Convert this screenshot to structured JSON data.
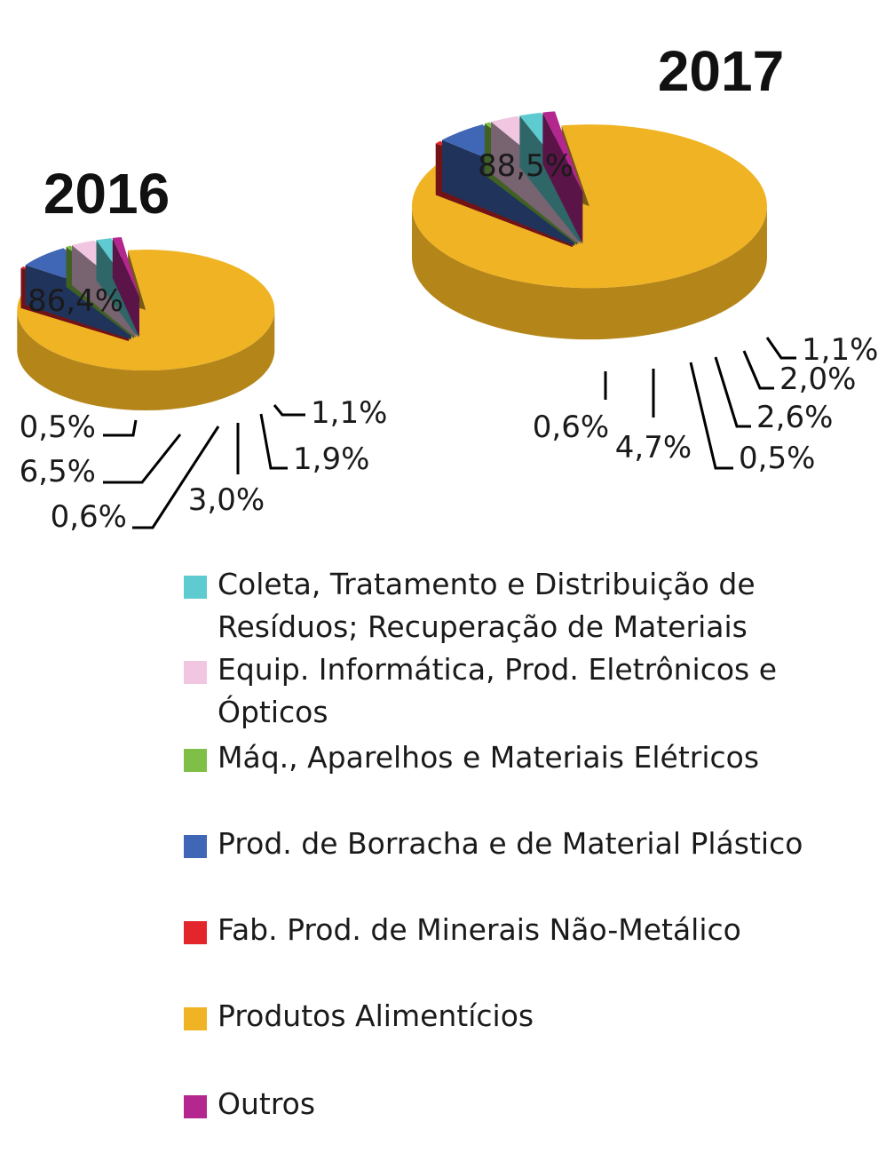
{
  "chart_data": [
    {
      "type": "pie",
      "title": "2016",
      "slices": [
        {
          "name": "Produtos Alimentícios",
          "value": 86.4,
          "label": "86,4%",
          "color": "#f0b323"
        },
        {
          "name": "Fab. Prod. de Minerais Não-Metálico",
          "value": 0.5,
          "label": "0,5%",
          "color": "#e3262b"
        },
        {
          "name": "Prod. de Borracha e de Material Plástico",
          "value": 6.5,
          "label": "6,5%",
          "color": "#4066b6"
        },
        {
          "name": "Máq., Aparelhos e Materiais Elétricos",
          "value": 0.6,
          "label": "0,6%",
          "color": "#7fbf48"
        },
        {
          "name": "Equip. Informática, Prod. Eletrônicos e Ópticos",
          "value": 3.0,
          "label": "3,0%",
          "color": "#f0c6e0"
        },
        {
          "name": "Coleta, Tratamento e Distribuição de Resíduos; Recuperação de Materiais",
          "value": 1.9,
          "label": "1,9%",
          "color": "#5dcbcf"
        },
        {
          "name": "Outros",
          "value": 1.1,
          "label": "1,1%",
          "color": "#b3278f"
        }
      ]
    },
    {
      "type": "pie",
      "title": "2017",
      "slices": [
        {
          "name": "Produtos Alimentícios",
          "value": 88.5,
          "label": "88,5%",
          "color": "#f0b323"
        },
        {
          "name": "Fab. Prod. de Minerais Não-Metálico",
          "value": 0.6,
          "label": "0,6%",
          "color": "#e3262b"
        },
        {
          "name": "Prod. de Borracha e de Material Plástico",
          "value": 4.7,
          "label": "4,7%",
          "color": "#4066b6"
        },
        {
          "name": "Máq., Aparelhos e Materiais Elétricos",
          "value": 0.5,
          "label": "0,5%",
          "color": "#7fbf48"
        },
        {
          "name": "Equip. Informática, Prod. Eletrônicos e Ópticos",
          "value": 2.6,
          "label": "2,6%",
          "color": "#f0c6e0"
        },
        {
          "name": "Coleta, Tratamento e Distribuição de Resíduos; Recuperação de Materiais",
          "value": 2.0,
          "label": "2,0%",
          "color": "#5dcbcf"
        },
        {
          "name": "Outros",
          "value": 1.1,
          "label": "1,1%",
          "color": "#b3278f"
        }
      ]
    }
  ],
  "legend": {
    "placement": "bottom",
    "items": [
      {
        "label": "Coleta, Tratamento e Distribuição de Resíduos; Recuperação de Materiais",
        "color": "#5dcbcf"
      },
      {
        "label": "Equip. Informática, Prod. Eletrônicos e Ópticos",
        "color": "#f0c6e0"
      },
      {
        "label": "Máq., Aparelhos e Materiais Elétricos",
        "color": "#7fbf48"
      },
      {
        "label": "Prod. de Borracha e de Material Plástico",
        "color": "#4066b6"
      },
      {
        "label": "Fab. Prod. de Minerais Não-Metálico",
        "color": "#e3262b"
      },
      {
        "label": "Produtos Alimentícios",
        "color": "#f0b323"
      },
      {
        "label": "Outros",
        "color": "#b3278f"
      }
    ]
  }
}
